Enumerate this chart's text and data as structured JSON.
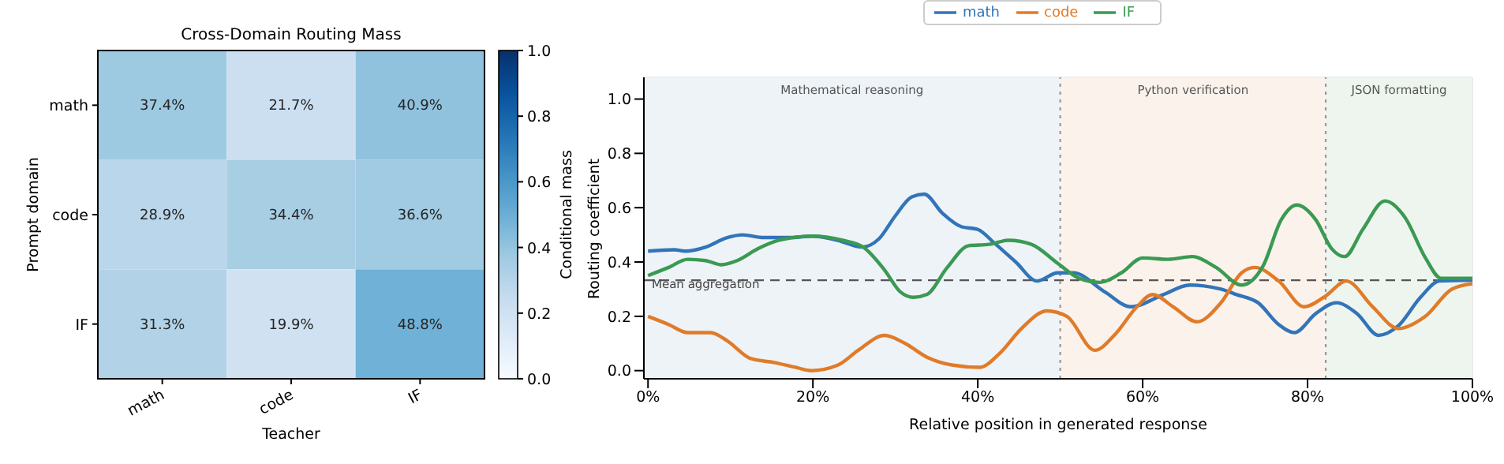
{
  "chart_data": [
    {
      "type": "heatmap",
      "title": "Cross-Domain Routing Mass",
      "xlabel": "Teacher",
      "ylabel": "Prompt domain",
      "clabel": "Conditional mass",
      "categories": [
        "math",
        "code",
        "IF"
      ],
      "y_categories": [
        "math",
        "code",
        "IF"
      ],
      "cells": [
        [
          0.374,
          0.217,
          0.409
        ],
        [
          0.289,
          0.344,
          0.366
        ],
        [
          0.313,
          0.199,
          0.488
        ]
      ],
      "cell_labels": [
        [
          "37.4%",
          "21.7%",
          "40.9%"
        ],
        [
          "28.9%",
          "34.4%",
          "36.6%"
        ],
        [
          "31.3%",
          "19.9%",
          "48.8%"
        ]
      ],
      "clim": [
        0,
        1
      ],
      "cticks": [
        {
          "value": 0,
          "label": "0.0"
        },
        0.2,
        0.4,
        0.6,
        0.8,
        {
          "value": 1,
          "label": "1.0"
        }
      ]
    },
    {
      "type": "line",
      "xlabel": "Relative position in generated response",
      "ylabel": "Routing coefficient",
      "xlim": [
        -0.5,
        100
      ],
      "ylim": [
        -0.03,
        1.08
      ],
      "xticks": [
        {
          "value": 0,
          "label": "0%"
        },
        {
          "value": 20,
          "label": "20%"
        },
        {
          "value": 40,
          "label": "40%"
        },
        {
          "value": 60,
          "label": "60%"
        },
        {
          "value": 80,
          "label": "80%"
        },
        {
          "value": 100,
          "label": "100%"
        }
      ],
      "yticks": [
        {
          "value": 0,
          "label": "0.0"
        },
        {
          "value": 0.2,
          "label": "0.2"
        },
        {
          "value": 0.4,
          "label": "0.4"
        },
        {
          "value": 0.6,
          "label": "0.6"
        },
        {
          "value": 0.8,
          "label": "0.8"
        },
        {
          "value": 1,
          "label": "1.0"
        }
      ],
      "grid": true,
      "legend": "top",
      "line_style": "solid",
      "marker": "none",
      "bands": [
        {
          "axis": "x",
          "from": -0.5,
          "to": 50,
          "label": "Mathematical reasoning",
          "color": "#eef3f8"
        },
        {
          "axis": "x",
          "from": 50,
          "to": 82.2,
          "label": "Python verification",
          "color": "#fbf2ec"
        },
        {
          "axis": "x",
          "from": 82.2,
          "to": 100,
          "label": "JSON formatting",
          "color": "#eef5ef"
        }
      ],
      "ref_lines": [
        {
          "axis": "y",
          "value": 0.333,
          "label": "Mean aggregation",
          "color": "#555555",
          "line_style": "dashed"
        },
        {
          "axis": "x",
          "value": 50,
          "label": null,
          "color": "#999999",
          "line_style": "dotted"
        },
        {
          "axis": "x",
          "value": 82.2,
          "label": null,
          "color": "#999999",
          "line_style": "dotted"
        }
      ],
      "series": [
        {
          "name": "math",
          "color": "#3274b8",
          "x": [
            0,
            3.2,
            4.5,
            7,
            9.6,
            11.5,
            14,
            17,
            20,
            23,
            26,
            28,
            30,
            32,
            33.5,
            35.7,
            38,
            40,
            42,
            44.6,
            47.2,
            49.7,
            51.6,
            55.4,
            58.6,
            62.5,
            65.7,
            69.5,
            71.4,
            74,
            76.5,
            78.4,
            81,
            83.5,
            86,
            88.6,
            91,
            93.7,
            96,
            100
          ],
          "values": [
            0.44,
            0.445,
            0.44,
            0.455,
            0.49,
            0.5,
            0.49,
            0.49,
            0.495,
            0.48,
            0.455,
            0.485,
            0.57,
            0.64,
            0.65,
            0.58,
            0.53,
            0.52,
            0.47,
            0.4,
            0.33,
            0.36,
            0.36,
            0.29,
            0.235,
            0.28,
            0.315,
            0.3,
            0.28,
            0.25,
            0.17,
            0.14,
            0.21,
            0.25,
            0.21,
            0.13,
            0.165,
            0.27,
            0.33,
            0.333
          ]
        },
        {
          "name": "code",
          "color": "#e07b28",
          "x": [
            0,
            2.5,
            4.8,
            7.6,
            9.6,
            12.4,
            15.3,
            17.8,
            19.8,
            23,
            25.5,
            28.7,
            31.2,
            33.8,
            37,
            40.2,
            42.7,
            45.3,
            48.4,
            50.8,
            54.2,
            56.7,
            59.3,
            61.2,
            63.7,
            66.6,
            69.5,
            72,
            73.6,
            76.5,
            79.6,
            82.2,
            84.7,
            87.9,
            91,
            94.3,
            97.5,
            100
          ],
          "values": [
            0.2,
            0.17,
            0.14,
            0.14,
            0.11,
            0.045,
            0.03,
            0.013,
            0.0,
            0.02,
            0.075,
            0.13,
            0.1,
            0.05,
            0.02,
            0.012,
            0.065,
            0.155,
            0.22,
            0.2,
            0.075,
            0.135,
            0.235,
            0.28,
            0.235,
            0.18,
            0.25,
            0.36,
            0.38,
            0.33,
            0.235,
            0.275,
            0.33,
            0.235,
            0.155,
            0.2,
            0.3,
            0.32
          ]
        },
        {
          "name": "IF",
          "color": "#3a9a52",
          "x": [
            0,
            2.5,
            4.8,
            7,
            8.9,
            10.8,
            13.4,
            15.9,
            19.8,
            23.6,
            26.1,
            28.7,
            30.6,
            32.2,
            33.8,
            36.3,
            38.9,
            41.4,
            43.7,
            46.5,
            49.7,
            52.3,
            54.8,
            57.4,
            60,
            63.1,
            66,
            68.9,
            72,
            74.6,
            76.8,
            78.7,
            81,
            82.9,
            84.5,
            86.7,
            89.4,
            91.8,
            94.3,
            96.2,
            100
          ],
          "values": [
            0.35,
            0.38,
            0.41,
            0.405,
            0.39,
            0.405,
            0.45,
            0.48,
            0.495,
            0.48,
            0.455,
            0.37,
            0.29,
            0.27,
            0.28,
            0.38,
            0.46,
            0.465,
            0.48,
            0.465,
            0.395,
            0.34,
            0.325,
            0.36,
            0.415,
            0.41,
            0.42,
            0.38,
            0.315,
            0.385,
            0.555,
            0.61,
            0.555,
            0.45,
            0.42,
            0.52,
            0.625,
            0.565,
            0.415,
            0.34,
            0.34
          ]
        }
      ]
    }
  ]
}
